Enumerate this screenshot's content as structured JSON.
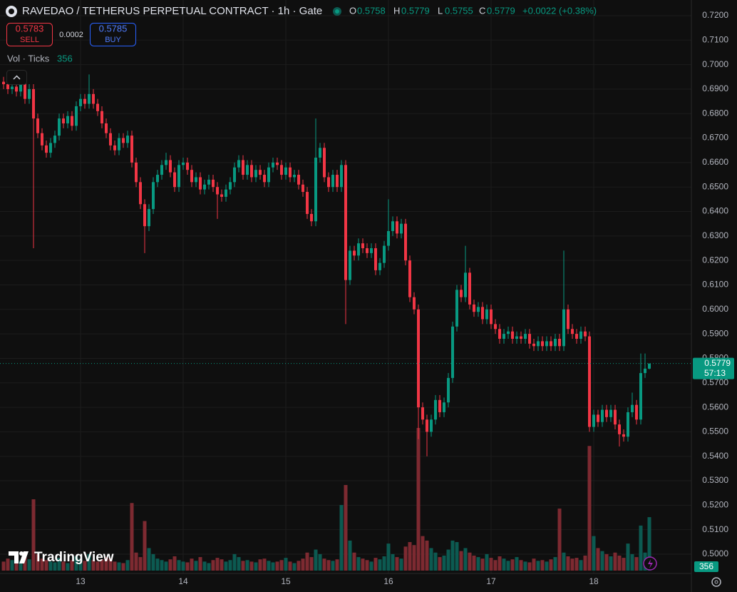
{
  "chart_data": {
    "type": "candlestick",
    "title": "RAVEDAO / TETHERUS PERPETUAL CONTRACT · 1h · Gate",
    "legend_keys": [
      "O",
      "H",
      "L",
      "C"
    ],
    "change": "+0.0022 (+0.38%)",
    "sell_price": "0.5783",
    "sell_label": "SELL",
    "spread": "0.0002",
    "buy_price": "0.5785",
    "buy_label": "BUY",
    "volume_label": "Vol · Ticks",
    "countdown": "57:13",
    "brand": "TradingView",
    "up_color": "#089981",
    "down_color": "#f23645",
    "volume_up_color": "#0c5a51",
    "volume_down_color": "#7d2a31",
    "grid": true,
    "ylim": [
      0.4933,
      0.7264
    ],
    "yticks": [
      {
        "value": 0.72,
        "label": "0.7200"
      },
      {
        "value": 0.71,
        "label": "0.7100"
      },
      {
        "value": 0.7,
        "label": "0.7000"
      },
      {
        "value": 0.69,
        "label": "0.6900"
      },
      {
        "value": 0.68,
        "label": "0.6800"
      },
      {
        "value": 0.67,
        "label": "0.6700"
      },
      {
        "value": 0.66,
        "label": "0.6600"
      },
      {
        "value": 0.65,
        "label": "0.6500"
      },
      {
        "value": 0.64,
        "label": "0.6400"
      },
      {
        "value": 0.63,
        "label": "0.6300"
      },
      {
        "value": 0.62,
        "label": "0.6200"
      },
      {
        "value": 0.61,
        "label": "0.6100"
      },
      {
        "value": 0.6,
        "label": "0.6000"
      },
      {
        "value": 0.59,
        "label": "0.5900"
      },
      {
        "value": 0.58,
        "label": "0.5800"
      },
      {
        "value": 0.57,
        "label": "0.5700"
      },
      {
        "value": 0.56,
        "label": "0.5600"
      },
      {
        "value": 0.55,
        "label": "0.5500"
      },
      {
        "value": 0.54,
        "label": "0.5400"
      },
      {
        "value": 0.53,
        "label": "0.5300"
      },
      {
        "value": 0.52,
        "label": "0.5200"
      },
      {
        "value": 0.51,
        "label": "0.5100"
      },
      {
        "value": 0.5,
        "label": "0.5000"
      }
    ],
    "categories": [
      null,
      null,
      null,
      null,
      null,
      null,
      null,
      null,
      null,
      null,
      null,
      null,
      null,
      null,
      null,
      null,
      null,
      null,
      "13",
      null,
      null,
      null,
      null,
      null,
      null,
      null,
      null,
      null,
      null,
      null,
      null,
      null,
      null,
      null,
      null,
      null,
      null,
      null,
      null,
      null,
      null,
      null,
      "14",
      null,
      null,
      null,
      null,
      null,
      null,
      null,
      null,
      null,
      null,
      null,
      null,
      null,
      null,
      null,
      null,
      null,
      null,
      null,
      null,
      null,
      null,
      null,
      "15",
      null,
      null,
      null,
      null,
      null,
      null,
      null,
      null,
      null,
      null,
      null,
      null,
      null,
      null,
      null,
      null,
      null,
      null,
      null,
      null,
      null,
      null,
      null,
      "16",
      null,
      null,
      null,
      null,
      null,
      null,
      null,
      null,
      null,
      null,
      null,
      null,
      null,
      null,
      null,
      null,
      null,
      null,
      null,
      null,
      null,
      null,
      null,
      "17",
      null,
      null,
      null,
      null,
      null,
      null,
      null,
      null,
      null,
      null,
      null,
      null,
      null,
      null,
      null,
      null,
      null,
      null,
      null,
      null,
      null,
      null,
      null,
      "18",
      null,
      null,
      null,
      null,
      null,
      null,
      null,
      null,
      null,
      null,
      null,
      null,
      null
    ],
    "open": [
      0.693,
      0.692,
      0.69,
      0.691,
      0.689,
      0.693,
      0.686,
      0.69,
      0.678,
      0.672,
      0.667,
      0.664,
      0.668,
      0.671,
      0.678,
      0.676,
      0.679,
      0.675,
      0.683,
      0.686,
      0.684,
      0.688,
      0.684,
      0.681,
      0.676,
      0.672,
      0.667,
      0.665,
      0.67,
      0.668,
      0.671,
      0.66,
      0.652,
      0.643,
      0.634,
      0.641,
      0.652,
      0.655,
      0.659,
      0.661,
      0.656,
      0.65,
      0.659,
      0.66,
      0.657,
      0.652,
      0.654,
      0.649,
      0.651,
      0.653,
      0.65,
      0.647,
      0.646,
      0.649,
      0.652,
      0.658,
      0.661,
      0.655,
      0.659,
      0.654,
      0.657,
      0.655,
      0.652,
      0.658,
      0.66,
      0.659,
      0.655,
      0.658,
      0.654,
      0.655,
      0.651,
      0.648,
      0.639,
      0.636,
      0.662,
      0.666,
      0.654,
      0.65,
      0.655,
      0.65,
      0.659,
      0.612,
      0.624,
      0.622,
      0.627,
      0.625,
      0.623,
      0.625,
      0.616,
      0.619,
      0.626,
      0.632,
      0.636,
      0.631,
      0.635,
      0.62,
      0.605,
      0.6,
      0.56,
      0.555,
      0.55,
      0.555,
      0.563,
      0.558,
      0.562,
      0.572,
      0.593,
      0.608,
      0.605,
      0.615,
      0.602,
      0.599,
      0.601,
      0.596,
      0.6,
      0.594,
      0.592,
      0.588,
      0.59,
      0.591,
      0.588,
      0.589,
      0.588,
      0.59,
      0.586,
      0.585,
      0.587,
      0.585,
      0.587,
      0.585,
      0.588,
      0.585,
      0.6,
      0.592,
      0.59,
      0.588,
      0.591,
      0.589,
      0.552,
      0.557,
      0.554,
      0.559,
      0.556,
      0.559,
      0.553,
      0.549,
      0.548,
      0.558,
      0.561,
      0.555,
      0.574,
      0.5758
    ],
    "high": [
      0.695,
      0.694,
      0.693,
      0.693,
      0.695,
      0.695,
      0.692,
      0.692,
      0.68,
      0.674,
      0.669,
      0.67,
      0.673,
      0.68,
      0.68,
      0.681,
      0.681,
      0.685,
      0.688,
      0.688,
      0.696,
      0.69,
      0.686,
      0.683,
      0.678,
      0.674,
      0.669,
      0.672,
      0.672,
      0.673,
      0.673,
      0.662,
      0.654,
      0.645,
      0.643,
      0.654,
      0.657,
      0.661,
      0.664,
      0.663,
      0.658,
      0.661,
      0.662,
      0.662,
      0.659,
      0.656,
      0.656,
      0.653,
      0.655,
      0.655,
      0.652,
      0.649,
      0.651,
      0.654,
      0.66,
      0.663,
      0.663,
      0.661,
      0.661,
      0.659,
      0.659,
      0.657,
      0.66,
      0.662,
      0.662,
      0.661,
      0.66,
      0.66,
      0.657,
      0.657,
      0.653,
      0.65,
      0.641,
      0.678,
      0.668,
      0.668,
      0.656,
      0.657,
      0.657,
      0.661,
      0.661,
      0.626,
      0.626,
      0.629,
      0.629,
      0.627,
      0.627,
      0.627,
      0.621,
      0.628,
      0.645,
      0.638,
      0.638,
      0.637,
      0.637,
      0.622,
      0.607,
      0.602,
      0.562,
      0.557,
      0.557,
      0.565,
      0.565,
      0.564,
      0.574,
      0.595,
      0.61,
      0.61,
      0.626,
      0.617,
      0.604,
      0.603,
      0.603,
      0.602,
      0.602,
      0.596,
      0.594,
      0.592,
      0.593,
      0.593,
      0.591,
      0.591,
      0.592,
      0.592,
      0.588,
      0.589,
      0.589,
      0.589,
      0.589,
      0.59,
      0.59,
      0.624,
      0.602,
      0.594,
      0.592,
      0.593,
      0.593,
      0.591,
      0.559,
      0.559,
      0.561,
      0.561,
      0.561,
      0.561,
      0.555,
      0.551,
      0.56,
      0.566,
      0.563,
      0.582,
      0.582,
      0.5779
    ],
    "low": [
      0.69,
      0.688,
      0.688,
      0.687,
      0.687,
      0.684,
      0.684,
      0.625,
      0.67,
      0.665,
      0.662,
      0.662,
      0.666,
      0.669,
      0.674,
      0.674,
      0.673,
      0.673,
      0.681,
      0.682,
      0.682,
      0.682,
      0.679,
      0.674,
      0.67,
      0.665,
      0.663,
      0.663,
      0.666,
      0.666,
      0.658,
      0.65,
      0.641,
      0.623,
      0.632,
      0.639,
      0.65,
      0.653,
      0.657,
      0.654,
      0.648,
      0.648,
      0.657,
      0.655,
      0.65,
      0.65,
      0.647,
      0.647,
      0.649,
      0.648,
      0.637,
      0.644,
      0.644,
      0.647,
      0.65,
      0.656,
      0.653,
      0.653,
      0.652,
      0.652,
      0.653,
      0.65,
      0.65,
      0.656,
      0.657,
      0.653,
      0.653,
      0.652,
      0.652,
      0.649,
      0.646,
      0.637,
      0.634,
      0.634,
      0.66,
      0.652,
      0.648,
      0.648,
      0.648,
      0.648,
      0.594,
      0.61,
      0.62,
      0.62,
      0.623,
      0.621,
      0.621,
      0.614,
      0.614,
      0.617,
      0.624,
      0.63,
      0.629,
      0.629,
      0.618,
      0.603,
      0.598,
      0.547,
      0.553,
      0.54,
      0.548,
      0.553,
      0.556,
      0.556,
      0.56,
      0.57,
      0.591,
      0.603,
      0.603,
      0.6,
      0.597,
      0.597,
      0.594,
      0.594,
      0.592,
      0.59,
      0.586,
      0.586,
      0.588,
      0.586,
      0.586,
      0.586,
      0.586,
      0.584,
      0.583,
      0.583,
      0.583,
      0.583,
      0.583,
      0.583,
      0.583,
      0.583,
      0.59,
      0.588,
      0.586,
      0.586,
      0.587,
      0.55,
      0.55,
      0.552,
      0.552,
      0.554,
      0.554,
      0.551,
      0.544,
      0.546,
      0.546,
      0.556,
      0.553,
      0.553,
      0.572,
      0.5755
    ],
    "close": [
      0.692,
      0.69,
      0.691,
      0.689,
      0.693,
      0.686,
      0.69,
      0.678,
      0.672,
      0.667,
      0.664,
      0.668,
      0.671,
      0.678,
      0.676,
      0.679,
      0.675,
      0.683,
      0.686,
      0.684,
      0.688,
      0.684,
      0.681,
      0.676,
      0.672,
      0.667,
      0.665,
      0.67,
      0.668,
      0.671,
      0.66,
      0.652,
      0.643,
      0.634,
      0.641,
      0.652,
      0.655,
      0.659,
      0.661,
      0.656,
      0.65,
      0.659,
      0.66,
      0.657,
      0.652,
      0.654,
      0.649,
      0.651,
      0.653,
      0.65,
      0.647,
      0.646,
      0.649,
      0.652,
      0.658,
      0.661,
      0.655,
      0.659,
      0.654,
      0.657,
      0.655,
      0.652,
      0.658,
      0.66,
      0.659,
      0.655,
      0.658,
      0.654,
      0.655,
      0.651,
      0.648,
      0.639,
      0.636,
      0.662,
      0.666,
      0.654,
      0.65,
      0.655,
      0.65,
      0.659,
      0.612,
      0.624,
      0.622,
      0.627,
      0.625,
      0.623,
      0.625,
      0.616,
      0.619,
      0.626,
      0.632,
      0.636,
      0.631,
      0.635,
      0.62,
      0.605,
      0.6,
      0.56,
      0.555,
      0.55,
      0.555,
      0.563,
      0.558,
      0.562,
      0.572,
      0.593,
      0.608,
      0.605,
      0.615,
      0.602,
      0.599,
      0.601,
      0.596,
      0.6,
      0.594,
      0.592,
      0.588,
      0.59,
      0.591,
      0.588,
      0.589,
      0.588,
      0.59,
      0.586,
      0.585,
      0.587,
      0.585,
      0.587,
      0.585,
      0.588,
      0.585,
      0.6,
      0.592,
      0.59,
      0.588,
      0.591,
      0.589,
      0.552,
      0.557,
      0.554,
      0.559,
      0.556,
      0.559,
      0.553,
      0.549,
      0.548,
      0.558,
      0.561,
      0.555,
      0.574,
      0.5758,
      0.5779
    ],
    "volume": [
      60,
      80,
      70,
      55,
      65,
      90,
      75,
      475,
      110,
      80,
      70,
      60,
      55,
      85,
      60,
      50,
      70,
      95,
      80,
      65,
      110,
      70,
      60,
      75,
      90,
      80,
      60,
      55,
      50,
      70,
      450,
      120,
      90,
      330,
      150,
      110,
      80,
      70,
      60,
      75,
      95,
      70,
      60,
      55,
      80,
      65,
      90,
      60,
      50,
      70,
      85,
      75,
      60,
      70,
      110,
      90,
      65,
      70,
      60,
      55,
      75,
      80,
      65,
      55,
      60,
      70,
      85,
      60,
      50,
      65,
      80,
      120,
      90,
      140,
      110,
      80,
      70,
      65,
      75,
      437,
      570,
      200,
      120,
      90,
      80,
      70,
      60,
      85,
      75,
      95,
      180,
      110,
      90,
      80,
      160,
      190,
      170,
      950,
      230,
      200,
      150,
      120,
      90,
      100,
      140,
      200,
      190,
      130,
      150,
      120,
      100,
      90,
      80,
      110,
      85,
      70,
      95,
      80,
      65,
      75,
      90,
      70,
      60,
      55,
      80,
      65,
      70,
      60,
      75,
      90,
      413,
      120,
      95,
      80,
      85,
      70,
      100,
      830,
      230,
      150,
      130,
      110,
      95,
      120,
      100,
      85,
      180,
      110,
      90,
      300,
      120,
      356
    ]
  }
}
